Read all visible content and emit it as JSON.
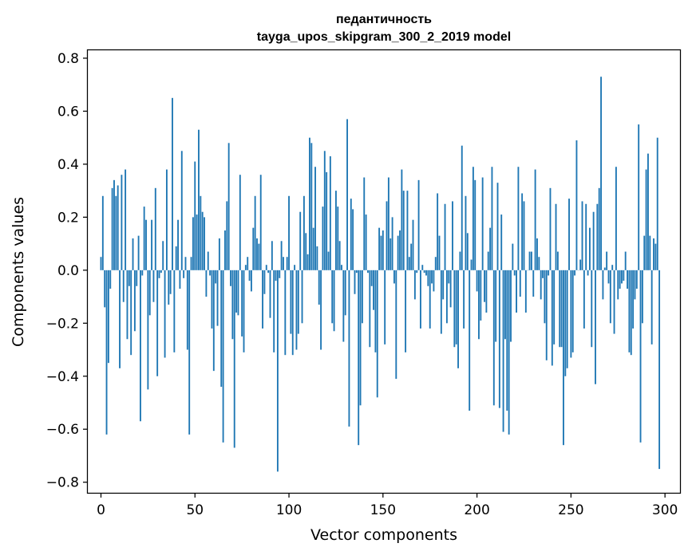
{
  "chart_data": {
    "type": "bar",
    "title": "педантичность",
    "subtitle": "tayga_upos_skipgram_300_2_2019 model",
    "xlabel": "Vector components",
    "ylabel": "Components values",
    "xlim": [
      -7,
      308
    ],
    "ylim": [
      -0.84,
      0.83
    ],
    "xticks": [
      0,
      50,
      100,
      150,
      200,
      250,
      300
    ],
    "xtick_labels": [
      "0",
      "50",
      "100",
      "150",
      "200",
      "250",
      "300"
    ],
    "yticks": [
      -0.8,
      -0.6,
      -0.4,
      -0.2,
      0.0,
      0.2,
      0.4,
      0.6,
      0.8
    ],
    "ytick_labels": [
      "−0.8",
      "−0.6",
      "−0.4",
      "−0.2",
      "0.0",
      "0.2",
      "0.4",
      "0.6",
      "0.8"
    ],
    "bar_color": "#1f77b4",
    "grid": false,
    "x_start": 0,
    "values": [
      0.05,
      0.28,
      -0.14,
      -0.62,
      -0.35,
      -0.07,
      0.31,
      0.34,
      0.28,
      0.32,
      -0.37,
      0.36,
      -0.12,
      0.38,
      -0.26,
      -0.06,
      -0.32,
      0.12,
      -0.23,
      -0.06,
      0.13,
      -0.57,
      -0.02,
      0.24,
      0.19,
      -0.45,
      -0.17,
      0.19,
      -0.12,
      0.31,
      -0.4,
      -0.03,
      -0.01,
      0.11,
      -0.33,
      0.38,
      -0.13,
      -0.09,
      0.65,
      -0.31,
      0.09,
      0.19,
      -0.07,
      0.45,
      -0.03,
      0.05,
      -0.3,
      -0.62,
      0.05,
      0.2,
      0.41,
      0.21,
      0.53,
      0.28,
      0.22,
      0.2,
      -0.1,
      0.07,
      -0.02,
      -0.22,
      -0.38,
      -0.05,
      -0.21,
      0.12,
      -0.44,
      -0.65,
      0.15,
      0.26,
      0.48,
      -0.06,
      -0.26,
      -0.67,
      -0.16,
      -0.17,
      0.36,
      -0.25,
      -0.31,
      0.02,
      0.05,
      -0.04,
      -0.08,
      0.16,
      0.28,
      0.12,
      0.1,
      0.36,
      -0.22,
      -0.09,
      0.02,
      -0.01,
      -0.18,
      0.11,
      -0.31,
      -0.04,
      -0.76,
      -0.03,
      0.11,
      0.05,
      -0.32,
      0.05,
      0.28,
      -0.24,
      -0.32,
      0.02,
      -0.3,
      -0.24,
      0.22,
      -0.2,
      0.28,
      0.14,
      0.06,
      0.5,
      0.48,
      0.16,
      0.39,
      0.09,
      -0.13,
      -0.3,
      0.24,
      0.45,
      0.37,
      0.07,
      0.43,
      -0.2,
      -0.23,
      0.3,
      0.24,
      0.11,
      0.02,
      -0.27,
      -0.17,
      0.57,
      -0.59,
      0.27,
      0.23,
      -0.09,
      -0.01,
      -0.66,
      -0.51,
      -0.2,
      0.35,
      0.21,
      -0.01,
      -0.29,
      -0.06,
      -0.15,
      -0.31,
      -0.48,
      0.16,
      0.13,
      0.15,
      -0.28,
      0.26,
      0.35,
      0.12,
      0.2,
      -0.05,
      -0.41,
      0.13,
      0.15,
      0.38,
      0.3,
      -0.31,
      0.3,
      0.05,
      0.1,
      0.19,
      -0.11,
      -0.01,
      0.34,
      -0.22,
      0.02,
      -0.01,
      -0.02,
      -0.06,
      -0.22,
      -0.05,
      -0.08,
      0.05,
      0.29,
      0.13,
      -0.24,
      -0.11,
      0.25,
      -0.2,
      -0.05,
      -0.14,
      0.26,
      -0.29,
      -0.28,
      -0.37,
      0.07,
      0.47,
      -0.22,
      0.28,
      0.14,
      -0.53,
      0.04,
      0.39,
      0.34,
      -0.08,
      -0.26,
      -0.19,
      0.35,
      -0.12,
      -0.16,
      0.07,
      0.16,
      0.39,
      -0.51,
      -0.27,
      0.33,
      -0.52,
      0.21,
      -0.61,
      -0.26,
      -0.53,
      -0.62,
      -0.27,
      0.1,
      -0.02,
      -0.16,
      0.39,
      -0.1,
      0.29,
      0.26,
      -0.16,
      0.0,
      0.07,
      0.07,
      -0.1,
      0.38,
      0.12,
      0.05,
      -0.11,
      -0.03,
      -0.2,
      -0.34,
      -0.02,
      0.31,
      -0.36,
      -0.28,
      0.25,
      0.07,
      -0.29,
      -0.29,
      -0.66,
      -0.4,
      -0.37,
      0.27,
      -0.33,
      -0.31,
      -0.02,
      0.49,
      0.0,
      0.04,
      0.26,
      -0.22,
      0.25,
      -0.02,
      0.16,
      -0.29,
      0.22,
      -0.43,
      0.25,
      0.31,
      0.73,
      -0.11,
      0.01,
      0.07,
      -0.05,
      -0.2,
      0.02,
      -0.24,
      0.39,
      -0.11,
      -0.07,
      -0.05,
      -0.04,
      0.07,
      -0.07,
      -0.31,
      -0.32,
      -0.22,
      -0.11,
      -0.07,
      0.55,
      -0.65,
      -0.2,
      0.13,
      0.38,
      0.44,
      0.13,
      -0.28,
      0.12,
      0.1,
      0.5,
      -0.75
    ]
  }
}
